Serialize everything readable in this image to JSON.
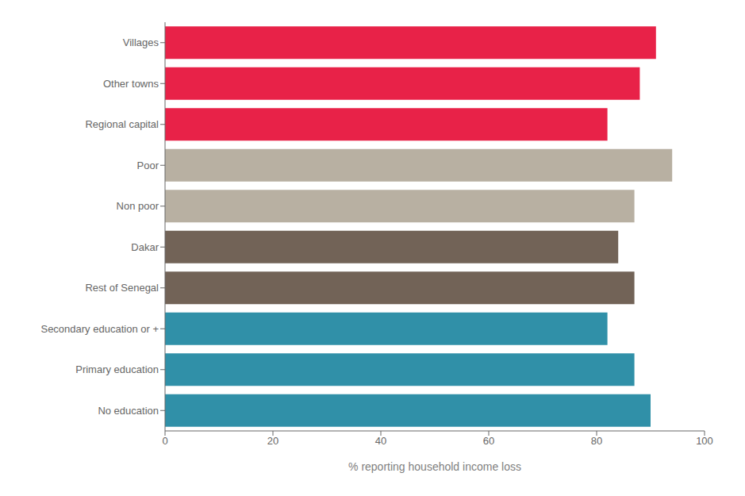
{
  "chart_data": {
    "type": "bar",
    "orientation": "horizontal",
    "categories": [
      "No education",
      "Primary education",
      "Secondary education or +",
      "Rest of Senegal",
      "Dakar",
      "Non poor",
      "Poor",
      "Regional capital",
      "Other towns",
      "Villages"
    ],
    "values": [
      90,
      87,
      82,
      87,
      84,
      87,
      94,
      82,
      88,
      91
    ],
    "colors": [
      "#3090a8",
      "#3090a8",
      "#3090a8",
      "#726357",
      "#726357",
      "#b8b0a2",
      "#b8b0a2",
      "#e82248",
      "#e82248",
      "#e82248"
    ],
    "xlabel": "% reporting household income loss",
    "xlim": [
      0,
      100
    ],
    "xticks": [
      0,
      20,
      40,
      60,
      80,
      100
    ]
  }
}
